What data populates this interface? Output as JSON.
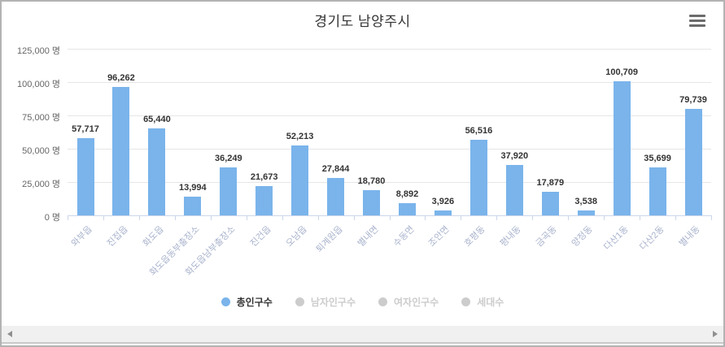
{
  "header": {
    "title": "경기도 남양주시"
  },
  "chart_data": {
    "type": "bar",
    "title": "경기도 남양주시",
    "categories": [
      "와부읍",
      "진접읍",
      "화도읍",
      "화도읍동부출장소",
      "화도읍남부출장소",
      "진건읍",
      "오남읍",
      "퇴계원읍",
      "별내면",
      "수동면",
      "조안면",
      "호평동",
      "평내동",
      "금곡동",
      "양정동",
      "다산1동",
      "다산2동",
      "별내동"
    ],
    "series": [
      {
        "name": "총인구수",
        "active": true,
        "color": "#7ab4eb",
        "values": [
          57717,
          96262,
          65440,
          13994,
          36249,
          21673,
          52213,
          27844,
          18780,
          8892,
          3926,
          56516,
          37920,
          17879,
          3538,
          100709,
          35699,
          79739
        ],
        "value_labels": [
          "57,717",
          "96,262",
          "65,440",
          "13,994",
          "36,249",
          "21,673",
          "52,213",
          "27,844",
          "18,780",
          "8,892",
          "3,926",
          "56,516",
          "37,920",
          "17,879",
          "3,538",
          "100,709",
          "35,699",
          "79,739"
        ]
      },
      {
        "name": "남자인구수",
        "active": false,
        "color": "#cccccc",
        "values": []
      },
      {
        "name": "여자인구수",
        "active": false,
        "color": "#cccccc",
        "values": []
      },
      {
        "name": "세대수",
        "active": false,
        "color": "#cccccc",
        "values": []
      }
    ],
    "yticks": [
      {
        "value": 0,
        "label": "0 명"
      },
      {
        "value": 25000,
        "label": "25,000 명"
      },
      {
        "value": 50000,
        "label": "50,000 명"
      },
      {
        "value": 75000,
        "label": "75,000 명"
      },
      {
        "value": 100000,
        "label": "100,000 명"
      },
      {
        "value": 125000,
        "label": "125,000 명"
      }
    ],
    "ylim": [
      0,
      125000
    ],
    "grid": true,
    "legend_position": "bottom",
    "colors": {
      "bar": "#7ab4eb",
      "gridline": "#e6e6e6",
      "axis_line": "#ccd6eb",
      "y_label": "#666666",
      "x_label": "#a8b2cc",
      "value_label": "#333333",
      "title": "#333333",
      "inactive": "#cccccc"
    }
  },
  "scrollbar": {
    "left_arrow": "left",
    "right_arrow": "right"
  }
}
